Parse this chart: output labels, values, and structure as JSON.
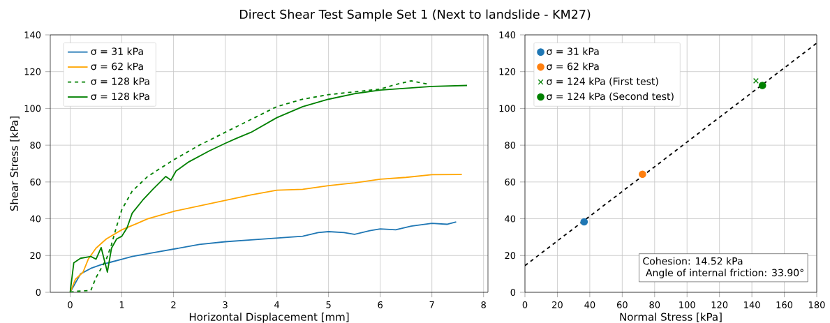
{
  "chart_data": [
    {
      "type": "line",
      "title": "Direct Shear Test Sample Set 1 (Next to landslide - KM27)",
      "xlabel": "Horizontal Displacement [mm]",
      "ylabel": "Shear Stress [kPa]",
      "xlim": [
        -0.385,
        8.085
      ],
      "ylim": [
        0,
        140
      ],
      "xticks": [
        0,
        1,
        2,
        3,
        4,
        5,
        6,
        7,
        8
      ],
      "yticks": [
        0,
        20,
        40,
        60,
        80,
        100,
        120,
        140
      ],
      "grid": true,
      "legend": "top left",
      "series": [
        {
          "name": "σ = 31 kPa",
          "color": "#1f77b4",
          "line_style": "solid",
          "x": [
            0,
            0.1,
            0.2,
            0.4,
            0.6,
            0.8,
            1,
            1.2,
            1.5,
            2,
            2.5,
            3,
            3.5,
            4,
            4.5,
            4.8,
            5,
            5.3,
            5.5,
            5.8,
            6,
            6.3,
            6.6,
            7,
            7.3,
            7.47
          ],
          "values": [
            0,
            null,
            10,
            13,
            15,
            16.5,
            18,
            19.5,
            21,
            23.5,
            26,
            27.5,
            28.5,
            29.5,
            30.5,
            32.5,
            33,
            32.5,
            31.5,
            33.5,
            34.5,
            34,
            36,
            37.5,
            37,
            38.3
          ]
        },
        {
          "name": "σ = 62 kPa",
          "color": "#ffa500",
          "line_style": "solid",
          "x": [
            0,
            0.1,
            0.25,
            0.35,
            0.5,
            0.7,
            1,
            1.3,
            1.5,
            2,
            2.5,
            3,
            3.5,
            4,
            4.5,
            5,
            5.5,
            6,
            6.5,
            7,
            7.58
          ],
          "values": [
            0,
            7,
            11,
            18,
            24,
            29,
            34,
            37.5,
            40,
            44,
            47,
            50,
            53,
            55.5,
            56,
            58,
            59.5,
            61.5,
            62.5,
            64,
            64.1
          ]
        },
        {
          "name": "σ = 128 kPa",
          "color": "#008000",
          "line_style": "dashed",
          "x": [
            0,
            0.1,
            0.4,
            0.5,
            0.7,
            0.8,
            0.9,
            1,
            1.2,
            1.5,
            2,
            2.5,
            3,
            3.5,
            4,
            4.5,
            5,
            5.5,
            6,
            6.3,
            6.6,
            6.96
          ],
          "values": [
            0,
            0.5,
            1,
            8,
            18,
            26,
            36,
            45,
            55,
            63,
            72,
            80,
            87,
            94,
            101,
            105,
            107.5,
            109,
            110.5,
            113,
            115,
            113
          ]
        },
        {
          "name": "σ = 128 kPa",
          "color": "#008000",
          "line_style": "solid",
          "x": [
            0,
            0.07,
            0.2,
            0.4,
            0.5,
            0.6,
            0.72,
            0.8,
            0.9,
            1,
            1.1,
            1.2,
            1.4,
            1.6,
            1.85,
            1.95,
            2.05,
            2.3,
            2.7,
            3,
            3.2,
            3.5,
            4,
            4.5,
            5,
            5.5,
            6,
            6.5,
            7,
            7.68
          ],
          "values": [
            0,
            16,
            18.5,
            19.5,
            18,
            24.3,
            11,
            24,
            29,
            30.5,
            35,
            43,
            50,
            56,
            63,
            61,
            66,
            71,
            77,
            81,
            83.5,
            87,
            95,
            101,
            105,
            108,
            110,
            111,
            112,
            112.5
          ]
        }
      ]
    },
    {
      "type": "scatter",
      "xlabel": "Normal Stress [kPa]",
      "xlim": [
        0,
        180
      ],
      "ylim": [
        0,
        140
      ],
      "xticks": [
        0,
        20,
        40,
        60,
        80,
        100,
        120,
        140,
        160,
        180
      ],
      "yticks": [
        0,
        20,
        40,
        60,
        80,
        100,
        120,
        140
      ],
      "grid": true,
      "legend": "top left",
      "annotations": [
        "Cohesion: 14.52 kPa",
        " Angle of internal friction: 33.90°"
      ],
      "series": [
        {
          "name": "σ = 31 kPa",
          "color": "#1f77b4",
          "marker": "circle",
          "x": [
            36.5
          ],
          "values": [
            38.3
          ]
        },
        {
          "name": "σ = 62 kPa",
          "color": "#ff7f0e",
          "marker": "circle",
          "x": [
            72.5
          ],
          "values": [
            64.2
          ]
        },
        {
          "name": "σ = 124 kPa (First test)",
          "color": "#008000",
          "marker": "cross",
          "x": [
            142.5
          ],
          "values": [
            115
          ]
        },
        {
          "name": "σ = 124 kPa (Second test)",
          "color": "#008000",
          "marker": "circle",
          "x": [
            146.5
          ],
          "values": [
            112.5
          ]
        },
        {
          "type": "line",
          "color": "#000000",
          "line_style": "dashed",
          "x": [
            0,
            180
          ],
          "values": [
            14.5,
            135.5
          ]
        }
      ]
    }
  ]
}
